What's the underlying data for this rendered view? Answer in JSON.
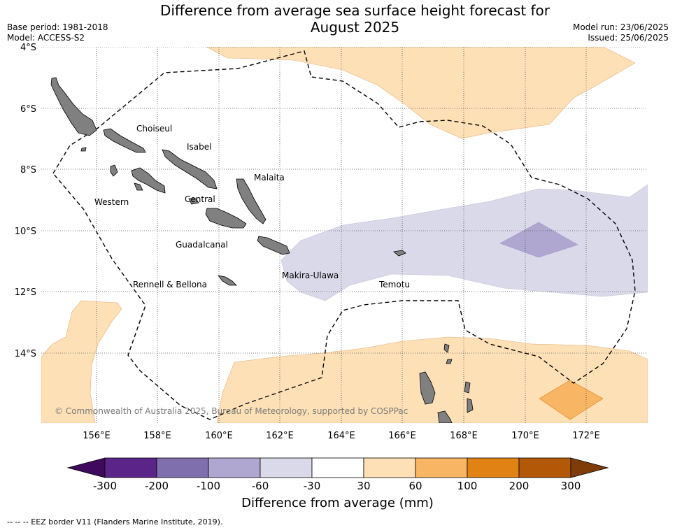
{
  "header": {
    "title_line1": "Difference from average sea surface height forecast for",
    "title_line2": "August 2025",
    "base_period": "Base period: 1981-2018",
    "model": "Model: ACCESS-S2",
    "model_run": "Model run: 23/06/2025",
    "issued": "Issued: 25/06/2025"
  },
  "map": {
    "lat_labels": [
      "4°S",
      "6°S",
      "8°S",
      "10°S",
      "12°S",
      "14°S"
    ],
    "lon_labels": [
      "156°E",
      "158°E",
      "160°E",
      "162°E",
      "164°E",
      "166°E",
      "168°E",
      "170°E",
      "172°E"
    ],
    "provinces": [
      "Choiseul",
      "Isabel",
      "Malaita",
      "Western",
      "Central",
      "Guadalcanal",
      "Makira-Ulawa",
      "Temotu",
      "Rennell & Bellona"
    ],
    "credit": "© Commonwealth of Australia 2025, Bureau of Meteorology, supported by COSPPac",
    "land_color": "#808080"
  },
  "colorbar": {
    "ticks": [
      "-300",
      "-200",
      "-100",
      "-60",
      "-30",
      "30",
      "60",
      "100",
      "200",
      "300"
    ],
    "colors": [
      "#3f0a5e",
      "#5b2489",
      "#7f6fad",
      "#b0a7d1",
      "#d9d9ea",
      "#ffffff",
      "#fde0b6",
      "#f8b563",
      "#e08214",
      "#b35806",
      "#7f3b08"
    ],
    "label": "Difference from average (mm)"
  },
  "footnote": "-- -- -- EEZ border V11 (Flanders Marine Institute, 2019)."
}
